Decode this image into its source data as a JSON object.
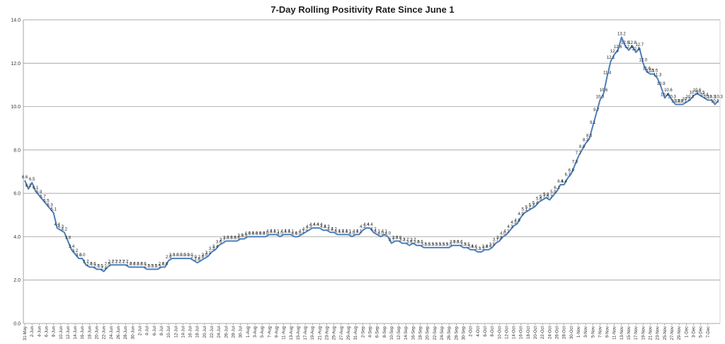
{
  "chart_data": {
    "type": "line",
    "title": "7-Day Rolling Positivity Rate Since June 1",
    "xlabel": "",
    "ylabel": "",
    "ylim": [
      0,
      14
    ],
    "yticks": [
      "0.0",
      "2.0",
      "4.0",
      "6.0",
      "8.0",
      "10.0",
      "12.0",
      "14.0"
    ],
    "grid": true,
    "color": "#4a7ebb",
    "x_tick_labels": [
      "31-May",
      "2-Jun",
      "4-Jun",
      "6-Jun",
      "8-Jun",
      "10-Jun",
      "12-Jun",
      "14-Jun",
      "16-Jun",
      "18-Jun",
      "20-Jun",
      "22-Jun",
      "24-Jun",
      "26-Jun",
      "28-Jun",
      "30-Jun",
      "2-Jul",
      "4-Jul",
      "6-Jul",
      "8-Jul",
      "10-Jul",
      "12-Jul",
      "14-Jul",
      "16-Jul",
      "18-Jul",
      "20-Jul",
      "22-Jul",
      "24-Jul",
      "26-Jul",
      "28-Jul",
      "30-Jul",
      "1-Aug",
      "3-Aug",
      "5-Aug",
      "7-Aug",
      "9-Aug",
      "11-Aug",
      "13-Aug",
      "15-Aug",
      "17-Aug",
      "19-Aug",
      "21-Aug",
      "23-Aug",
      "25-Aug",
      "27-Aug",
      "29-Aug",
      "31-Aug",
      "2-Sep",
      "4-Sep",
      "6-Sep",
      "8-Sep",
      "10-Sep",
      "12-Sep",
      "14-Sep",
      "16-Sep",
      "18-Sep",
      "20-Sep",
      "22-Sep",
      "24-Sep",
      "26-Sep",
      "28-Sep",
      "30-Sep",
      "2-Oct",
      "4-Oct",
      "6-Oct",
      "8-Oct",
      "10-Oct",
      "12-Oct",
      "14-Oct",
      "16-Oct",
      "18-Oct",
      "20-Oct",
      "22-Oct",
      "24-Oct",
      "26-Oct",
      "28-Oct",
      "30-Oct",
      "1-Nov",
      "3-Nov",
      "5-Nov",
      "7-Nov",
      "9-Nov",
      "11-Nov",
      "13-Nov",
      "15-Nov",
      "17-Nov",
      "19-Nov",
      "21-Nov",
      "23-Nov",
      "25-Nov",
      "27-Nov",
      "29-Nov",
      "1-Dec",
      "3-Dec",
      "5-Dec",
      "7-Dec"
    ],
    "series": [
      {
        "values": [
          6.6,
          6.2,
          6.5,
          6.1,
          5.9,
          5.7,
          5.5,
          5.3,
          5.1,
          4.4,
          4.3,
          4.2,
          3.8,
          3.4,
          3.2,
          3.0,
          3.0,
          2.7,
          2.6,
          2.6,
          2.5,
          2.5,
          2.4,
          2.6,
          2.7,
          2.7,
          2.7,
          2.7,
          2.7,
          2.6,
          2.6,
          2.6,
          2.6,
          2.6,
          2.5,
          2.5,
          2.5,
          2.5,
          2.6,
          2.6,
          2.9,
          3.0,
          3.0,
          3.0,
          3.0,
          3.0,
          3.0,
          2.9,
          2.8,
          2.9,
          3.0,
          3.1,
          3.3,
          3.4,
          3.6,
          3.7,
          3.8,
          3.8,
          3.8,
          3.8,
          3.9,
          3.9,
          4.0,
          4.0,
          4.0,
          4.0,
          4.0,
          4.0,
          4.1,
          4.1,
          4.1,
          4.0,
          4.1,
          4.1,
          4.1,
          4.0,
          4.0,
          4.1,
          4.2,
          4.3,
          4.4,
          4.4,
          4.4,
          4.3,
          4.3,
          4.2,
          4.2,
          4.1,
          4.1,
          4.1,
          4.1,
          4.0,
          4.1,
          4.1,
          4.3,
          4.4,
          4.4,
          4.2,
          4.1,
          4.0,
          4.1,
          4.0,
          3.7,
          3.8,
          3.8,
          3.7,
          3.7,
          3.6,
          3.7,
          3.6,
          3.6,
          3.5,
          3.5,
          3.5,
          3.5,
          3.5,
          3.5,
          3.5,
          3.5,
          3.6,
          3.6,
          3.6,
          3.5,
          3.5,
          3.4,
          3.4,
          3.3,
          3.3,
          3.4,
          3.4,
          3.5,
          3.7,
          3.8,
          4.0,
          4.1,
          4.3,
          4.5,
          4.6,
          4.9,
          5.1,
          5.2,
          5.3,
          5.4,
          5.6,
          5.7,
          5.8,
          5.7,
          5.9,
          6.1,
          6.4,
          6.4,
          6.7,
          6.9,
          7.3,
          7.7,
          8.0,
          8.3,
          8.5,
          9.1,
          9.7,
          10.3,
          10.6,
          11.4,
          12.1,
          12.4,
          12.6,
          13.2,
          12.8,
          12.6,
          12.8,
          12.5,
          12.7,
          12.0,
          11.6,
          11.5,
          11.5,
          11.3,
          10.9,
          10.4,
          10.6,
          10.3,
          10.1,
          10.1,
          10.1,
          10.2,
          10.3,
          10.5,
          10.6,
          10.5,
          10.4,
          10.3,
          10.3,
          10.1,
          10.3
        ]
      }
    ]
  }
}
